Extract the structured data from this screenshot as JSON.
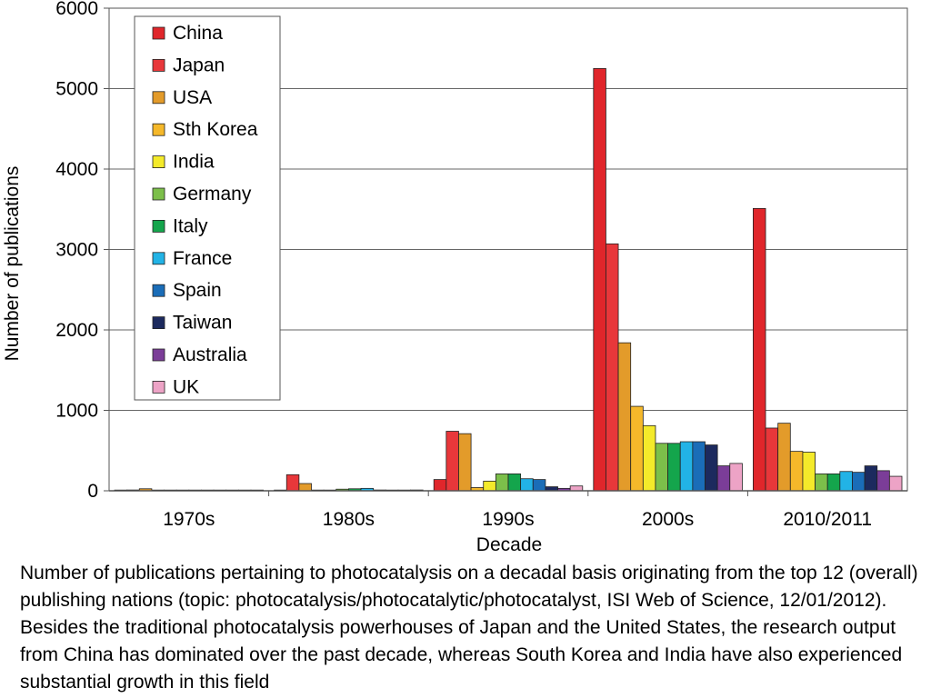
{
  "chart_data": {
    "type": "bar",
    "title": "",
    "xlabel": "Decade",
    "ylabel": "Number of publications",
    "ylim": [
      0,
      6000
    ],
    "yticks": [
      0,
      1000,
      2000,
      3000,
      4000,
      5000,
      6000
    ],
    "grid": true,
    "legend_position": "top-left",
    "categories": [
      "1970s",
      "1980s",
      "1990s",
      "2000s",
      "2010/2011"
    ],
    "series": [
      {
        "name": "China",
        "color": "#e0262b",
        "values": [
          0,
          2,
          140,
          5250,
          3510
        ]
      },
      {
        "name": "Japan",
        "color": "#e8373a",
        "values": [
          10,
          200,
          740,
          3070,
          780
        ]
      },
      {
        "name": "USA",
        "color": "#e39b2a",
        "values": [
          25,
          90,
          710,
          1840,
          840
        ]
      },
      {
        "name": "Sth Korea",
        "color": "#f5b82a",
        "values": [
          0,
          5,
          40,
          1050,
          490
        ]
      },
      {
        "name": "India",
        "color": "#f4ea2a",
        "values": [
          0,
          5,
          120,
          810,
          480
        ]
      },
      {
        "name": "Germany",
        "color": "#7cbf4a",
        "values": [
          0,
          20,
          210,
          590,
          210
        ]
      },
      {
        "name": "Italy",
        "color": "#14a54c",
        "values": [
          0,
          25,
          210,
          590,
          210
        ]
      },
      {
        "name": "France",
        "color": "#22b3e6",
        "values": [
          0,
          30,
          150,
          610,
          240
        ]
      },
      {
        "name": "Spain",
        "color": "#1a6db8",
        "values": [
          5,
          10,
          140,
          610,
          230
        ]
      },
      {
        "name": "Taiwan",
        "color": "#1c2a5e",
        "values": [
          0,
          5,
          50,
          570,
          310
        ]
      },
      {
        "name": "Australia",
        "color": "#7b3d98",
        "values": [
          0,
          5,
          30,
          310,
          250
        ]
      },
      {
        "name": "UK",
        "color": "#eda3c6",
        "values": [
          5,
          10,
          60,
          340,
          180
        ]
      }
    ]
  },
  "caption": "Number of publications pertaining to photocatalysis on a decadal basis originating from the top 12 (overall) publishing nations (topic: photocatalysis/photocatalytic/photocatalyst, ISI Web of Science, 12/01/2012). Besides the traditional photocatalysis powerhouses of Japan and the United States, the research output from China has dominated over the past decade, whereas South Korea and India have also experienced substantial growth in this field"
}
